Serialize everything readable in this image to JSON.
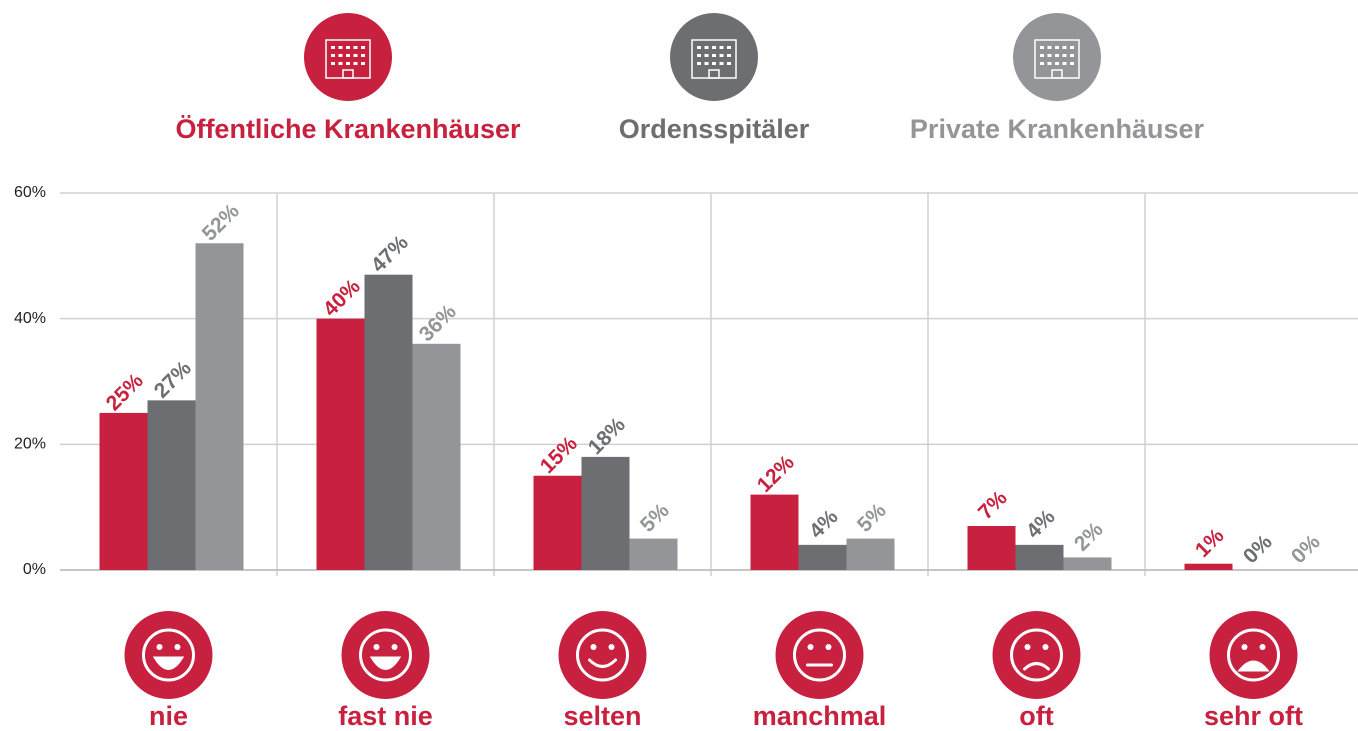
{
  "chart_data": {
    "type": "bar",
    "categories": [
      "nie",
      "fast nie",
      "selten",
      "manchmal",
      "oft",
      "sehr oft"
    ],
    "series": [
      {
        "name": "Öffentliche Krankenhäuser",
        "color": "#c8203f",
        "values": [
          25,
          40,
          15,
          12,
          7,
          1
        ],
        "value_labels": [
          "25%",
          "40%",
          "15%",
          "12%",
          "7%",
          "1%"
        ]
      },
      {
        "name": "Ordensspitäler",
        "color": "#6d6e71",
        "values": [
          27,
          47,
          18,
          4,
          4,
          0
        ],
        "value_labels": [
          "27%",
          "47%",
          "18%",
          "4%",
          "4%",
          "0%"
        ]
      },
      {
        "name": "Private Krankenhäuser",
        "color": "#939598",
        "values": [
          52,
          36,
          5,
          5,
          2,
          0
        ],
        "value_labels": [
          "52%",
          "36%",
          "5%",
          "5%",
          "2%",
          "0%"
        ]
      }
    ],
    "category_color": "#c8203f",
    "ylim": [
      0,
      60
    ],
    "yticks": [
      {
        "value": 0,
        "label": "0%"
      },
      {
        "value": 20,
        "label": "20%"
      },
      {
        "value": 40,
        "label": "40%"
      },
      {
        "value": 60,
        "label": "60%"
      }
    ],
    "grid": true
  }
}
